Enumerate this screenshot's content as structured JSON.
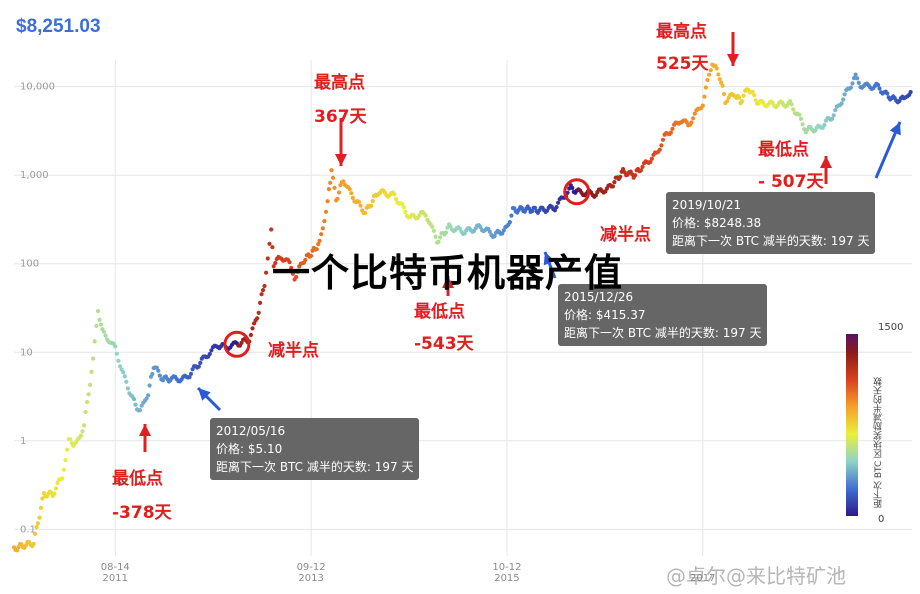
{
  "header": {
    "price": "$8,251.03"
  },
  "overlay_title": "一个比特币机器产值",
  "watermark": "@卓尔@来比特矿池",
  "colorbar": {
    "title": "距下次 BTC 区块奖励减半的天数",
    "max_label": "1500",
    "min_label": "0"
  },
  "annotations": [
    {
      "id": "peak-2013",
      "line1": "最高点",
      "line2": "367天"
    },
    {
      "id": "low-2011",
      "line1": "最低点",
      "line2": "-378天"
    },
    {
      "id": "low-2015",
      "line1": "最低点",
      "line2": "-543天"
    },
    {
      "id": "peak-2017",
      "line1": "最高点",
      "line2": "525天"
    },
    {
      "id": "low-2018",
      "line1": "最低点",
      "line2": "- 507天"
    },
    {
      "id": "halving-2012",
      "line1": "减半点"
    },
    {
      "id": "halving-2016",
      "line1": "减半点"
    }
  ],
  "tooltips": [
    {
      "date": "2012/05/16",
      "price": "价格: $5.10",
      "days": "距离下一次 BTC 减半的天数: 197 天"
    },
    {
      "date": "2015/12/26",
      "price": "价格: $415.37",
      "days": "距离下一次 BTC 减半的天数: 197 天"
    },
    {
      "date": "2019/10/21",
      "price": "价格: $8248.38",
      "days": "距离下一次 BTC 减半的天数: 197 天"
    }
  ],
  "chart_data": {
    "type": "scatter",
    "y_scale": "log",
    "ylim": [
      0.05,
      20000
    ],
    "y_ticks": [
      "0.1",
      "1",
      "10",
      "100",
      "1,000",
      "10,000"
    ],
    "x_ticks": [
      {
        "date": "2011-08-14",
        "label1": "08-14",
        "label2": "2011"
      },
      {
        "date": "2013-09-12",
        "label1": "09-12",
        "label2": "2013"
      },
      {
        "date": "2015-10-12",
        "label1": "10-12",
        "label2": "2015"
      },
      {
        "date": "2017-11-10",
        "label1": "",
        "label2": "2017"
      }
    ],
    "xlim": [
      "2010-07-17",
      "2020-01-31"
    ],
    "color_scale": "days to next halving (0 = purple, 1500 = red)",
    "series": [
      {
        "points": [
          [
            "2010-07-17",
            0.06
          ],
          [
            "2010-08-15",
            0.065
          ],
          [
            "2010-10-01",
            0.07
          ],
          [
            "2010-11-10",
            0.25
          ],
          [
            "2010-12-15",
            0.25
          ],
          [
            "2011-01-20",
            0.4
          ],
          [
            "2011-02-15",
            1.0
          ],
          [
            "2011-03-15",
            0.9
          ],
          [
            "2011-04-15",
            1.5
          ],
          [
            "2011-05-20",
            8
          ],
          [
            "2011-06-08",
            30
          ],
          [
            "2011-06-25",
            17
          ],
          [
            "2011-07-20",
            14
          ],
          [
            "2011-08-14",
            11
          ],
          [
            "2011-09-20",
            5
          ],
          [
            "2011-10-20",
            3
          ],
          [
            "2011-11-18",
            2.1
          ],
          [
            "2011-12-20",
            3.5
          ],
          [
            "2012-01-10",
            7
          ],
          [
            "2012-02-15",
            5
          ],
          [
            "2012-03-15",
            5
          ],
          [
            "2012-04-15",
            5
          ],
          [
            "2012-05-16",
            5.1
          ],
          [
            "2012-06-15",
            6.5
          ],
          [
            "2012-07-15",
            8
          ],
          [
            "2012-08-15",
            10
          ],
          [
            "2012-09-15",
            12
          ],
          [
            "2012-10-15",
            11.5
          ],
          [
            "2012-11-28",
            12.3
          ],
          [
            "2013-01-15",
            14
          ],
          [
            "2013-02-15",
            25
          ],
          [
            "2013-03-15",
            60
          ],
          [
            "2013-04-10",
            230
          ],
          [
            "2013-04-20",
            100
          ],
          [
            "2013-05-20",
            120
          ],
          [
            "2013-06-20",
            100
          ],
          [
            "2013-07-10",
            70
          ],
          [
            "2013-08-15",
            110
          ],
          [
            "2013-09-12",
            130
          ],
          [
            "2013-10-15",
            170
          ],
          [
            "2013-11-15",
            500
          ],
          [
            "2013-11-30",
            1150
          ],
          [
            "2013-12-18",
            520
          ],
          [
            "2014-01-15",
            900
          ],
          [
            "2014-02-15",
            600
          ],
          [
            "2014-04-10",
            380
          ],
          [
            "2014-06-01",
            650
          ],
          [
            "2014-08-01",
            590
          ],
          [
            "2014-10-01",
            330
          ],
          [
            "2014-12-01",
            370
          ],
          [
            "2015-01-14",
            180
          ],
          [
            "2015-03-01",
            260
          ],
          [
            "2015-05-01",
            230
          ],
          [
            "2015-07-01",
            260
          ],
          [
            "2015-08-25",
            210
          ],
          [
            "2015-10-12",
            250
          ],
          [
            "2015-11-04",
            400
          ],
          [
            "2015-12-26",
            415
          ],
          [
            "2016-02-15",
            400
          ],
          [
            "2016-04-15",
            430
          ],
          [
            "2016-06-16",
            720
          ],
          [
            "2016-07-09",
            650
          ],
          [
            "2016-09-15",
            610
          ],
          [
            "2016-11-15",
            730
          ],
          [
            "2017-01-05",
            1100
          ],
          [
            "2017-02-15",
            1000
          ],
          [
            "2017-03-15",
            1200
          ],
          [
            "2017-05-15",
            1750
          ],
          [
            "2017-06-15",
            2700
          ],
          [
            "2017-08-15",
            4200
          ],
          [
            "2017-09-15",
            3700
          ],
          [
            "2017-11-10",
            6500
          ],
          [
            "2017-12-17",
            19000
          ],
          [
            "2018-01-15",
            13000
          ],
          [
            "2018-02-06",
            7000
          ],
          [
            "2018-03-15",
            8200
          ],
          [
            "2018-04-06",
            6800
          ],
          [
            "2018-05-05",
            9700
          ],
          [
            "2018-06-15",
            6500
          ],
          [
            "2018-08-15",
            6300
          ],
          [
            "2018-10-15",
            6400
          ],
          [
            "2018-11-20",
            4500
          ],
          [
            "2018-12-15",
            3250
          ],
          [
            "2019-02-07",
            3400
          ],
          [
            "2019-04-02",
            4800
          ],
          [
            "2019-05-15",
            8000
          ],
          [
            "2019-06-26",
            12800
          ],
          [
            "2019-07-15",
            10500
          ],
          [
            "2019-08-15",
            10000
          ],
          [
            "2019-09-15",
            10200
          ],
          [
            "2019-10-21",
            8248
          ],
          [
            "2019-11-25",
            7100
          ],
          [
            "2019-12-31",
            7200
          ],
          [
            "2020-01-20",
            8600
          ],
          [
            "2020-01-31",
            9300
          ]
        ]
      }
    ]
  }
}
